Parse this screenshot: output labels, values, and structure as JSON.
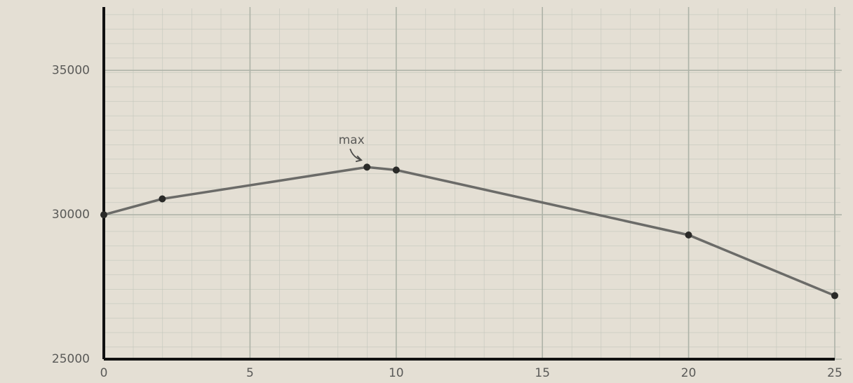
{
  "chart_data": {
    "type": "line",
    "x": [
      0,
      2,
      9,
      10,
      20,
      25
    ],
    "series": [
      {
        "color": "#6b6b68",
        "values": [
          30000,
          30550,
          31650,
          31550,
          29300,
          27200
        ]
      }
    ],
    "xlim": [
      0,
      25
    ],
    "xticks": [
      0,
      5,
      10,
      15,
      20,
      25
    ],
    "ylim": [
      25000,
      37000
    ],
    "yticks": [
      25000,
      30000,
      35000
    ],
    "grid": true,
    "annotation": {
      "text": "max",
      "x": 9,
      "y": 31650
    }
  }
}
